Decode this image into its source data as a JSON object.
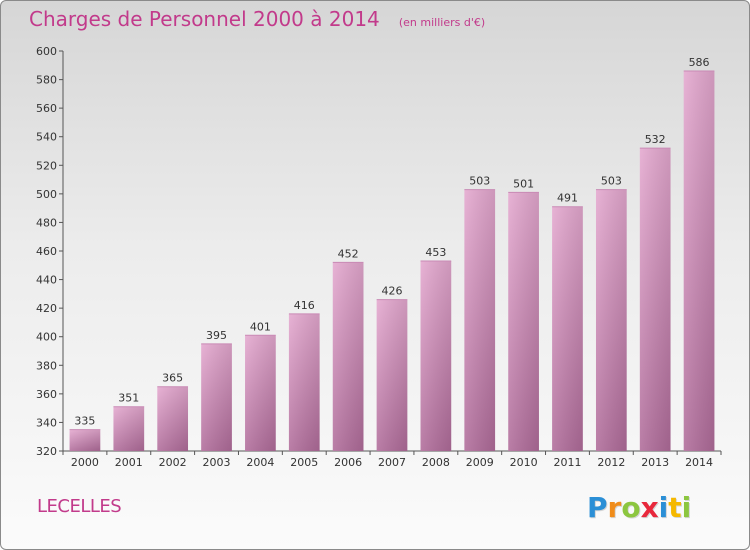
{
  "header": {
    "title": "Charges de Personnel 2000 à 2014",
    "subtitle": "(en milliers d'€)"
  },
  "footer": {
    "place": "LECELLES",
    "brand_letters": [
      {
        "ch": "P",
        "color": "#2b8fd6"
      },
      {
        "ch": "r",
        "color": "#f08c1a"
      },
      {
        "ch": "o",
        "color": "#8cc63f"
      },
      {
        "ch": "x",
        "color": "#e8283c"
      },
      {
        "ch": "i",
        "color": "#2b8fd6"
      },
      {
        "ch": "t",
        "color": "#f5b800"
      },
      {
        "ch": "i",
        "color": "#8cc63f"
      }
    ]
  },
  "colors": {
    "accent": "#c23a8b",
    "bar_top": "#e4a8cf",
    "bar_bottom": "#b06c9a"
  },
  "chart_data": {
    "type": "bar",
    "title": "Charges de Personnel 2000 à 2014",
    "subtitle": "(en milliers d'€)",
    "categories": [
      "2000",
      "2001",
      "2002",
      "2003",
      "2004",
      "2005",
      "2006",
      "2007",
      "2008",
      "2009",
      "2010",
      "2011",
      "2012",
      "2013",
      "2014"
    ],
    "values": [
      335,
      351,
      365,
      395,
      401,
      416,
      452,
      426,
      453,
      503,
      501,
      491,
      503,
      532,
      586
    ],
    "ylim": [
      320,
      600
    ],
    "yticks": [
      320,
      340,
      360,
      380,
      400,
      420,
      440,
      460,
      480,
      500,
      520,
      540,
      560,
      580,
      600
    ],
    "grid": false,
    "data_labels": true
  }
}
